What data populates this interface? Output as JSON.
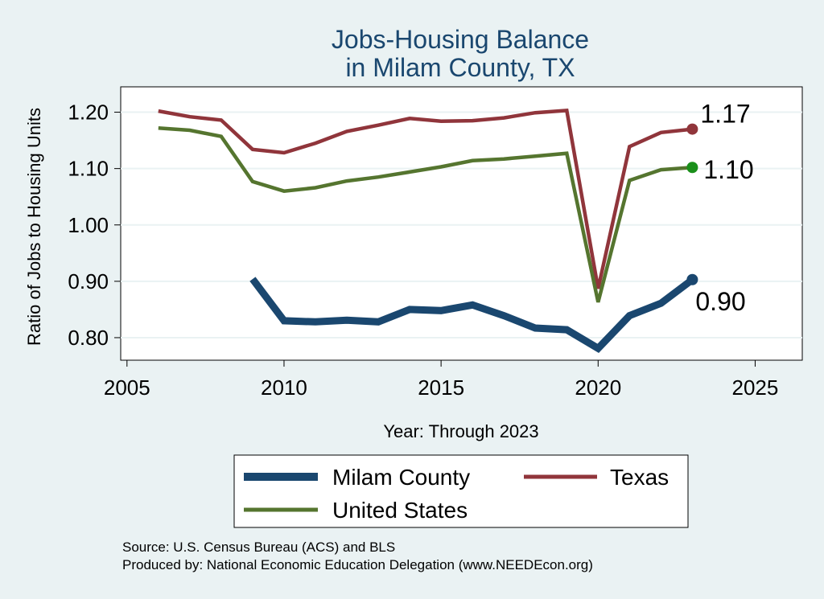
{
  "chart_data": {
    "type": "line",
    "title": [
      "Jobs-Housing Balance",
      "in Milam County, TX"
    ],
    "xlabel": "Year: Through 2023",
    "ylabel": "Ratio of Jobs to Housing Units",
    "xlim": [
      2004.8,
      2026.5
    ],
    "ylim": [
      0.76,
      1.245
    ],
    "xticks": [
      2005,
      2010,
      2015,
      2020,
      2025
    ],
    "yticks": [
      0.8,
      0.9,
      1.0,
      1.1,
      1.2
    ],
    "ytick_labels": [
      "0.80",
      "0.90",
      "1.00",
      "1.10",
      "1.20"
    ],
    "grid": true,
    "series": [
      {
        "name": "Texas",
        "color": "#90353b",
        "x": [
          2006,
          2007,
          2008,
          2009,
          2010,
          2011,
          2012,
          2013,
          2014,
          2015,
          2016,
          2017,
          2018,
          2019,
          2020,
          2021,
          2022,
          2023
        ],
        "values": [
          1.202,
          1.192,
          1.186,
          1.134,
          1.128,
          1.145,
          1.166,
          1.177,
          1.189,
          1.184,
          1.185,
          1.19,
          1.199,
          1.203,
          0.887,
          1.139,
          1.164,
          1.17
        ],
        "end_label": "1.17"
      },
      {
        "name": "United States",
        "color": "#55752f",
        "x": [
          2006,
          2007,
          2008,
          2009,
          2010,
          2011,
          2012,
          2013,
          2014,
          2015,
          2016,
          2017,
          2018,
          2019,
          2020,
          2021,
          2022,
          2023
        ],
        "values": [
          1.172,
          1.168,
          1.157,
          1.077,
          1.06,
          1.066,
          1.078,
          1.085,
          1.094,
          1.103,
          1.114,
          1.117,
          1.122,
          1.127,
          0.863,
          1.079,
          1.098,
          1.102
        ],
        "end_label": "1.10",
        "end_marker_color": "#1a8f1a"
      },
      {
        "name": "Milam County",
        "color": "#1a476f",
        "x": [
          2009,
          2010,
          2011,
          2012,
          2013,
          2014,
          2015,
          2016,
          2017,
          2018,
          2019,
          2020,
          2021,
          2022,
          2023
        ],
        "values": [
          0.904,
          0.83,
          0.828,
          0.831,
          0.828,
          0.85,
          0.848,
          0.858,
          0.839,
          0.817,
          0.814,
          0.781,
          0.839,
          0.861,
          0.903
        ],
        "end_label": "0.90"
      }
    ]
  },
  "legend": {
    "items": [
      {
        "label": "Milam County",
        "color": "#1a476f"
      },
      {
        "label": "Texas",
        "color": "#90353b"
      },
      {
        "label": "United States",
        "color": "#55752f"
      }
    ]
  },
  "notes": {
    "source": "Source: U.S. Census Bureau (ACS) and BLS",
    "produced_by": "Produced by: National Economic Education Delegation (www.NEEDEcon.org)"
  }
}
